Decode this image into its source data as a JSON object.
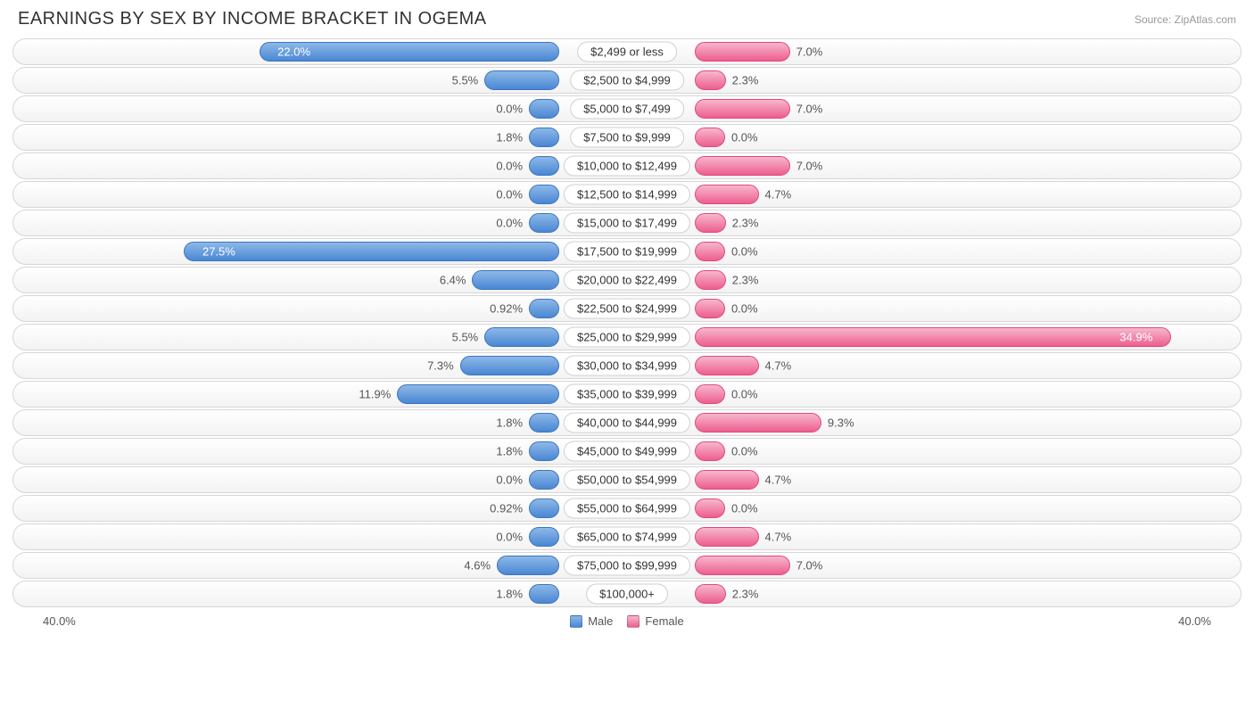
{
  "header": {
    "title": "EARNINGS BY SEX BY INCOME BRACKET IN OGEMA",
    "source": "Source: ZipAtlas.com"
  },
  "chart": {
    "type": "diverging-bar",
    "axis_max_pct": 40.0,
    "center_label_padding_pct": 11,
    "min_bar_pct": 5.0,
    "colors": {
      "male_top": "#8db8e8",
      "male_bottom": "#4a87d4",
      "male_border": "#3b74c1",
      "female_top": "#f7b7cd",
      "female_bottom": "#ed5e8f",
      "female_border": "#e24680",
      "track_border": "#d6d6d6",
      "track_top": "#ffffff",
      "track_bottom": "#f3f3f3",
      "background": "#ffffff",
      "text": "#555555"
    },
    "rows": [
      {
        "label": "$2,499 or less",
        "male": 22.0,
        "male_text": "22.0%",
        "female": 7.0,
        "female_text": "7.0%"
      },
      {
        "label": "$2,500 to $4,999",
        "male": 5.5,
        "male_text": "5.5%",
        "female": 2.3,
        "female_text": "2.3%"
      },
      {
        "label": "$5,000 to $7,499",
        "male": 0.0,
        "male_text": "0.0%",
        "female": 7.0,
        "female_text": "7.0%"
      },
      {
        "label": "$7,500 to $9,999",
        "male": 1.8,
        "male_text": "1.8%",
        "female": 0.0,
        "female_text": "0.0%"
      },
      {
        "label": "$10,000 to $12,499",
        "male": 0.0,
        "male_text": "0.0%",
        "female": 7.0,
        "female_text": "7.0%"
      },
      {
        "label": "$12,500 to $14,999",
        "male": 0.0,
        "male_text": "0.0%",
        "female": 4.7,
        "female_text": "4.7%"
      },
      {
        "label": "$15,000 to $17,499",
        "male": 0.0,
        "male_text": "0.0%",
        "female": 2.3,
        "female_text": "2.3%"
      },
      {
        "label": "$17,500 to $19,999",
        "male": 27.5,
        "male_text": "27.5%",
        "female": 0.0,
        "female_text": "0.0%"
      },
      {
        "label": "$20,000 to $22,499",
        "male": 6.4,
        "male_text": "6.4%",
        "female": 2.3,
        "female_text": "2.3%"
      },
      {
        "label": "$22,500 to $24,999",
        "male": 0.92,
        "male_text": "0.92%",
        "female": 0.0,
        "female_text": "0.0%"
      },
      {
        "label": "$25,000 to $29,999",
        "male": 5.5,
        "male_text": "5.5%",
        "female": 34.9,
        "female_text": "34.9%"
      },
      {
        "label": "$30,000 to $34,999",
        "male": 7.3,
        "male_text": "7.3%",
        "female": 4.7,
        "female_text": "4.7%"
      },
      {
        "label": "$35,000 to $39,999",
        "male": 11.9,
        "male_text": "11.9%",
        "female": 0.0,
        "female_text": "0.0%"
      },
      {
        "label": "$40,000 to $44,999",
        "male": 1.8,
        "male_text": "1.8%",
        "female": 9.3,
        "female_text": "9.3%"
      },
      {
        "label": "$45,000 to $49,999",
        "male": 1.8,
        "male_text": "1.8%",
        "female": 0.0,
        "female_text": "0.0%"
      },
      {
        "label": "$50,000 to $54,999",
        "male": 0.0,
        "male_text": "0.0%",
        "female": 4.7,
        "female_text": "4.7%"
      },
      {
        "label": "$55,000 to $64,999",
        "male": 0.92,
        "male_text": "0.92%",
        "female": 0.0,
        "female_text": "0.0%"
      },
      {
        "label": "$65,000 to $74,999",
        "male": 0.0,
        "male_text": "0.0%",
        "female": 4.7,
        "female_text": "4.7%"
      },
      {
        "label": "$75,000 to $99,999",
        "male": 4.6,
        "male_text": "4.6%",
        "female": 7.0,
        "female_text": "7.0%"
      },
      {
        "label": "$100,000+",
        "male": 1.8,
        "male_text": "1.8%",
        "female": 2.3,
        "female_text": "2.3%"
      }
    ]
  },
  "footer": {
    "axis_left": "40.0%",
    "axis_right": "40.0%",
    "legend": {
      "male": "Male",
      "female": "Female"
    }
  }
}
